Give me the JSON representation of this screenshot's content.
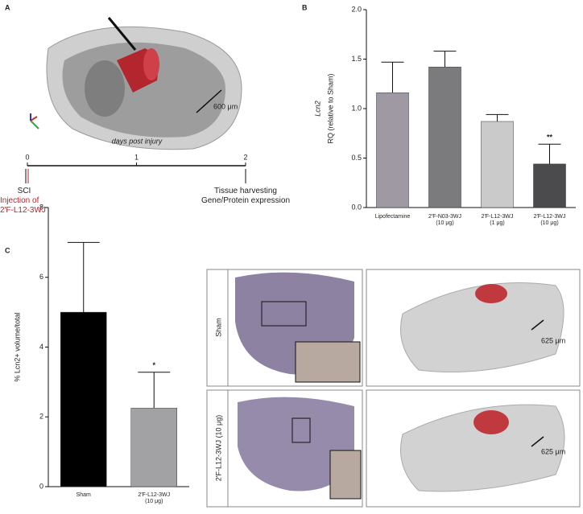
{
  "panels": {
    "a": "A",
    "b": "B",
    "c": "C"
  },
  "panel_a": {
    "scale": "600 μm",
    "timeline": {
      "title": "days post injury",
      "ticks": [
        0,
        1,
        2
      ]
    },
    "sci": "SCI",
    "injection": "Injection of\n2′F-L12-3WJ",
    "harvest": "Tissue harvesting\nGene/Protein expression"
  },
  "images": {
    "rows": [
      "Sham",
      "2′F-L12-3WJ (10 μg)"
    ],
    "scale_top": "625 μm",
    "scale_bottom": "625 μm"
  },
  "chart_data": [
    {
      "type": "bar",
      "y_label_italic": "Lcn2",
      "y_label": "RQ (relative to Sham)",
      "categories": [
        "Lipofectamine",
        "2′F-N03-3WJ\n(10 μg)",
        "2′F-L12-3WJ\n(1 μg)",
        "2′F-L12-3WJ\n(10 μg)"
      ],
      "values": [
        1.16,
        1.42,
        0.87,
        0.44
      ],
      "errors": [
        0.31,
        0.16,
        0.07,
        0.2
      ],
      "colors": [
        "#9e99a3",
        "#7b7b7d",
        "#cacaca",
        "#4b4b4d"
      ],
      "significance": [
        null,
        null,
        null,
        "**"
      ],
      "ylim": [
        0,
        2
      ],
      "yticks": [
        {
          "value": 0,
          "label": "0.0"
        },
        0.5,
        {
          "value": 1,
          "label": "1.0"
        },
        1.5,
        {
          "value": 2,
          "label": "2.0"
        }
      ]
    },
    {
      "type": "bar",
      "y_label": "% Lcn2+ volume/total",
      "categories": [
        "Sham",
        "2′F-L12-3WJ\n(10 μg)"
      ],
      "values": [
        5.0,
        2.25
      ],
      "errors": [
        2.0,
        1.03
      ],
      "colors": [
        "#000000",
        "#a2a2a4"
      ],
      "significance": [
        null,
        "*"
      ],
      "ylim": [
        0,
        8
      ],
      "yticks": [
        0,
        2,
        4,
        6,
        8
      ]
    }
  ]
}
